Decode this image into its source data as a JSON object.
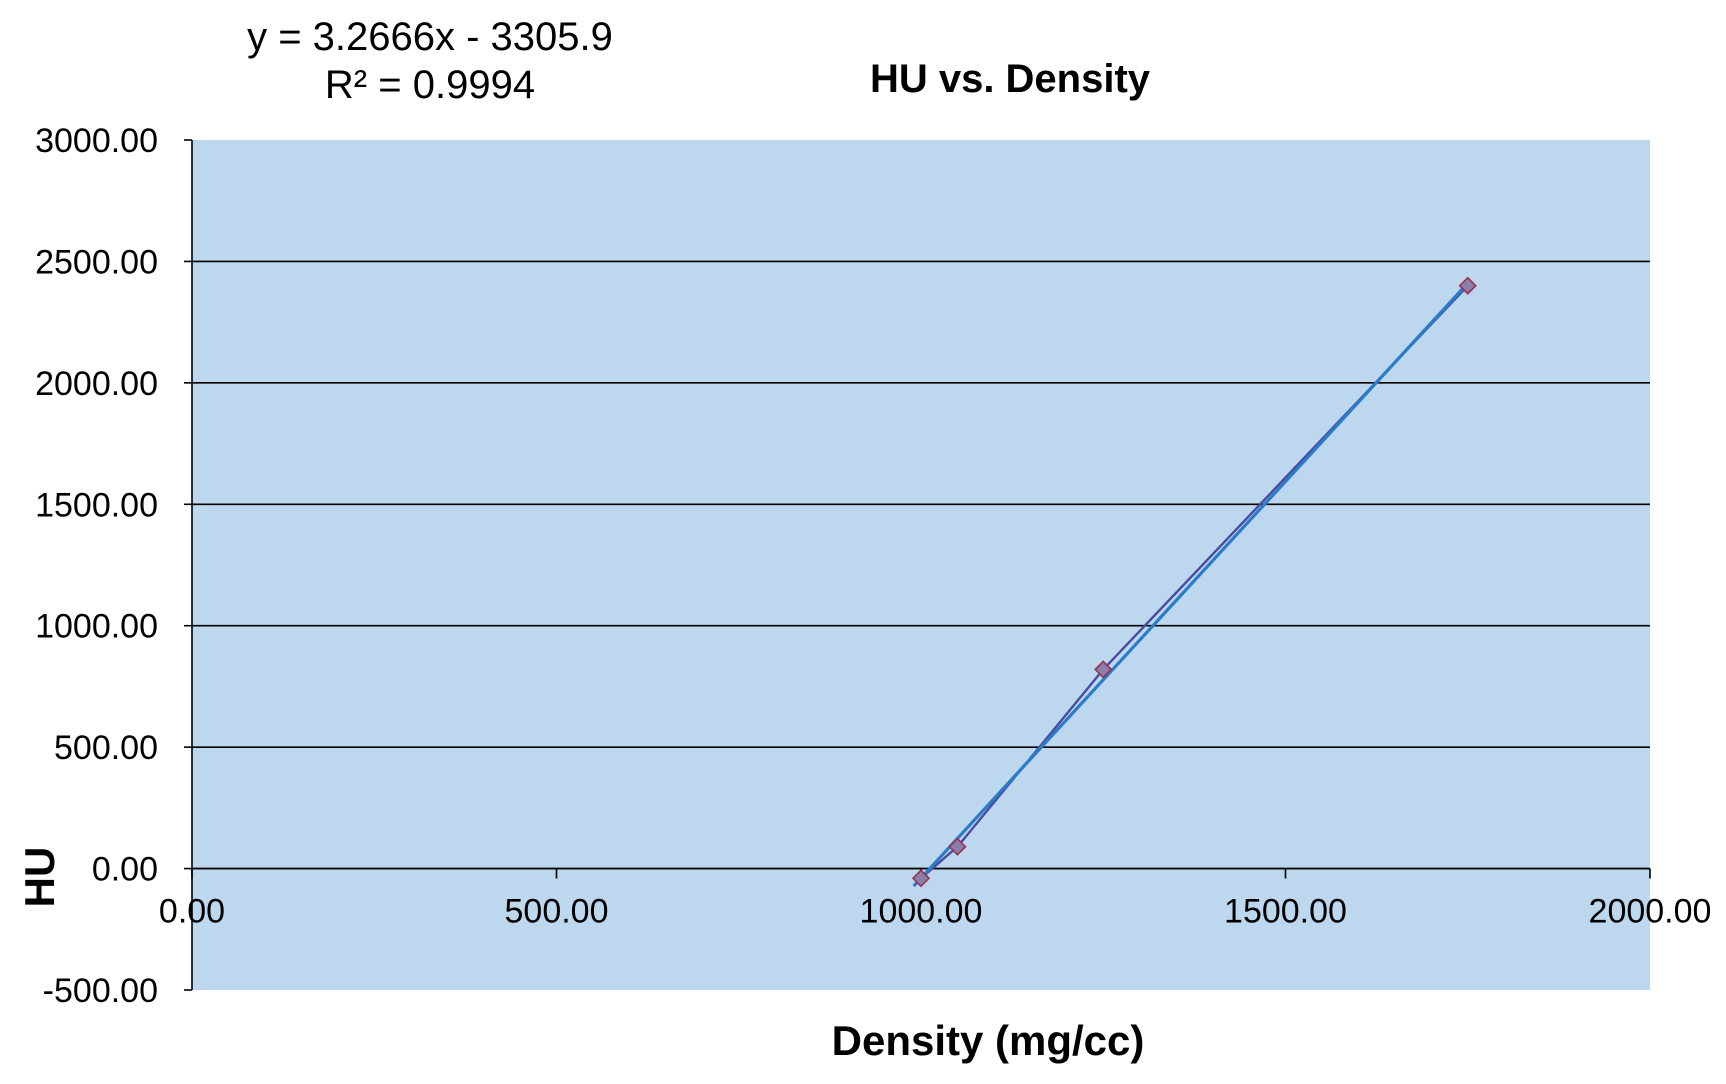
{
  "chart_data": {
    "type": "scatter",
    "title": "HU vs. Density",
    "xlabel": "Density (mg/cc)",
    "ylabel": "HU",
    "xlim": [
      0,
      2000
    ],
    "ylim": [
      -500,
      3000
    ],
    "x_ticks": [
      "0.00",
      "500.00",
      "1000.00",
      "1500.00",
      "2000.00"
    ],
    "y_ticks": [
      "3000.00",
      "2500.00",
      "2000.00",
      "1500.00",
      "1000.00",
      "500.00",
      "0.00",
      "-500.00"
    ],
    "grid": true,
    "legend": "none",
    "trendline": {
      "equation": "y = 3.2666x - 3305.9",
      "r_squared": "R² = 0.9994",
      "slope": 3.2666,
      "intercept": -3305.9
    },
    "series": [
      {
        "x": [
          1000,
          1050,
          1250,
          1750
        ],
        "y": [
          -40,
          90,
          820,
          2400
        ]
      }
    ],
    "colors": {
      "plot_background": "#bdd7ee",
      "gridline": "#000000",
      "series_line": "#4a4aa0",
      "trendline": "#2a7cc8",
      "marker_fill": "#8a7fa8",
      "marker_stroke": "#9b3050"
    }
  }
}
